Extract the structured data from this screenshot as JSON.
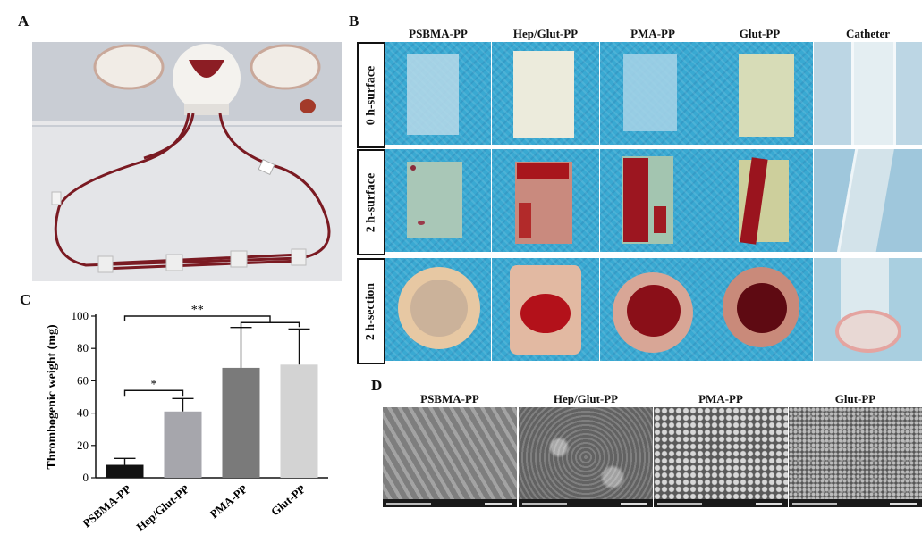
{
  "panels": {
    "a": {
      "letter": "A"
    },
    "b": {
      "letter": "B",
      "columns": [
        "PSBMA-PP",
        "Hep/Glut-PP",
        "PMA-PP",
        "Glut-PP",
        "Catheter"
      ],
      "rows": [
        "0 h-surface",
        "2 h-surface",
        "2 h-section"
      ]
    },
    "c": {
      "letter": "C"
    },
    "d": {
      "letter": "D",
      "columns": [
        "PSBMA-PP",
        "Hep/Glut-PP",
        "PMA-PP",
        "Glut-PP"
      ]
    }
  },
  "chart_data": {
    "type": "bar",
    "categories": [
      "PSBMA-PP",
      "Hep/Glut-PP",
      "PMA-PP",
      "Glut-PP"
    ],
    "values": [
      8,
      41,
      68,
      70
    ],
    "errors": [
      4,
      8,
      25,
      22
    ],
    "bar_colors": [
      "#111111",
      "#a6a6ac",
      "#7a7a7a",
      "#d3d3d3"
    ],
    "ylabel": "Thrombogenic weight (mg)",
    "xlabel": "",
    "ylim": [
      0,
      100
    ],
    "yticks": [
      0,
      20,
      40,
      60,
      80,
      100
    ],
    "annotations": [
      {
        "label": "*",
        "between": [
          "PSBMA-PP",
          "Hep/Glut-PP"
        ]
      },
      {
        "label": "**",
        "between": [
          "PSBMA-PP",
          "PMA-PP/Glut-PP"
        ]
      }
    ]
  }
}
